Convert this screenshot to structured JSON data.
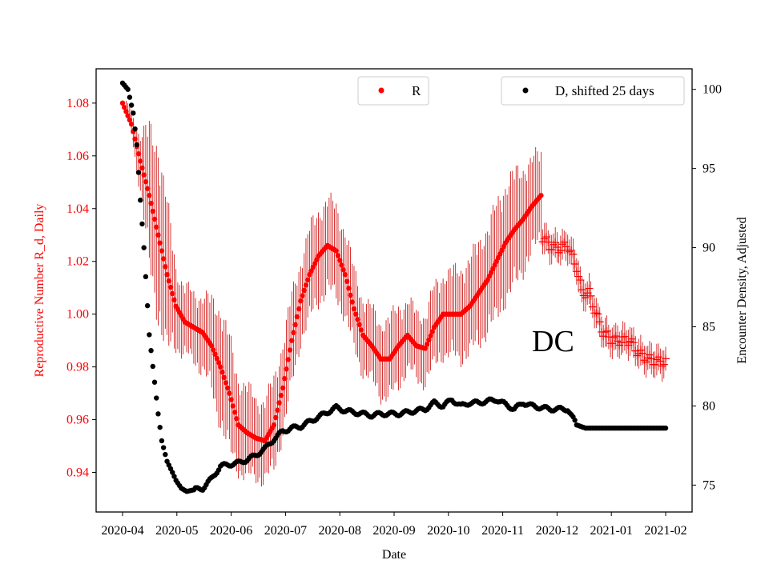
{
  "chart_data": {
    "type": "scatter",
    "title": "",
    "xlabel": "Date",
    "ylabel_left": "Reproductive Number R_d, Daily",
    "ylabel_right": "Encounter Density, Adjusted",
    "annotation": "DC",
    "x_ticks": [
      "2020-04",
      "2020-05",
      "2020-06",
      "2020-07",
      "2020-08",
      "2020-09",
      "2020-10",
      "2020-11",
      "2020-12",
      "2021-01",
      "2021-02"
    ],
    "y_left": {
      "lim": [
        0.925,
        1.093
      ],
      "ticks": [
        "0.94",
        "0.96",
        "0.98",
        "1.00",
        "1.02",
        "1.04",
        "1.06",
        "1.08"
      ]
    },
    "y_right": {
      "lim": [
        73.3,
        101.3
      ],
      "ticks": [
        "75",
        "80",
        "85",
        "90",
        "95",
        "100"
      ]
    },
    "colors": {
      "R": "#ff0000",
      "D": "#000000",
      "axis_left": "#ff0000",
      "axis_right": "#000000"
    },
    "legend": [
      {
        "label": "R",
        "color": "#ff0000",
        "placement": "top-center"
      },
      {
        "label": "D, shifted 25 days",
        "color": "#000000",
        "placement": "top-right"
      }
    ],
    "series_R": {
      "name": "R",
      "axis": "left",
      "marker": "dot",
      "keypoints": [
        [
          0,
          1.08,
          0.0
        ],
        [
          5,
          1.072,
          0.004
        ],
        [
          10,
          1.058,
          0.01
        ],
        [
          15,
          1.045,
          0.024
        ],
        [
          20,
          1.03,
          0.03
        ],
        [
          25,
          1.015,
          0.026
        ],
        [
          30,
          1.003,
          0.014
        ],
        [
          35,
          0.997,
          0.012
        ],
        [
          40,
          0.995,
          0.012
        ],
        [
          45,
          0.993,
          0.013
        ],
        [
          50,
          0.988,
          0.016
        ],
        [
          55,
          0.98,
          0.02
        ],
        [
          60,
          0.97,
          0.02
        ],
        [
          65,
          0.958,
          0.016
        ],
        [
          70,
          0.955,
          0.016
        ],
        [
          75,
          0.953,
          0.014
        ],
        [
          80,
          0.952,
          0.014
        ],
        [
          85,
          0.958,
          0.016
        ],
        [
          90,
          0.972,
          0.016
        ],
        [
          95,
          0.99,
          0.016
        ],
        [
          100,
          1.005,
          0.014
        ],
        [
          105,
          1.015,
          0.016
        ],
        [
          110,
          1.022,
          0.016
        ],
        [
          115,
          1.026,
          0.016
        ],
        [
          120,
          1.024,
          0.016
        ],
        [
          125,
          1.015,
          0.015
        ],
        [
          130,
          1.002,
          0.014
        ],
        [
          135,
          0.992,
          0.013
        ],
        [
          140,
          0.988,
          0.013
        ],
        [
          145,
          0.983,
          0.013
        ],
        [
          150,
          0.983,
          0.014
        ],
        [
          155,
          0.988,
          0.014
        ],
        [
          160,
          0.992,
          0.012
        ],
        [
          165,
          0.988,
          0.012
        ],
        [
          170,
          0.987,
          0.012
        ],
        [
          175,
          0.995,
          0.014
        ],
        [
          180,
          1.0,
          0.014
        ],
        [
          185,
          1.0,
          0.015
        ],
        [
          190,
          1.0,
          0.016
        ],
        [
          195,
          1.003,
          0.016
        ],
        [
          200,
          1.008,
          0.018
        ],
        [
          205,
          1.013,
          0.018
        ],
        [
          210,
          1.02,
          0.02
        ],
        [
          215,
          1.027,
          0.02
        ],
        [
          220,
          1.032,
          0.02
        ],
        [
          225,
          1.036,
          0.018
        ],
        [
          230,
          1.041,
          0.016
        ],
        [
          235,
          1.045,
          0.016
        ]
      ]
    },
    "series_R_plus": {
      "name": "R (plus markers)",
      "axis": "left",
      "marker": "plus",
      "keypoints": [
        [
          236,
          1.029
        ],
        [
          240,
          1.026
        ],
        [
          245,
          1.025
        ],
        [
          250,
          1.026
        ],
        [
          255,
          1.018
        ],
        [
          258,
          1.008
        ],
        [
          262,
          1.008
        ],
        [
          266,
          1.0
        ],
        [
          270,
          0.993
        ],
        [
          275,
          0.99
        ],
        [
          280,
          0.99
        ],
        [
          285,
          0.99
        ],
        [
          290,
          0.985
        ],
        [
          295,
          0.983
        ],
        [
          300,
          0.982
        ],
        [
          305,
          0.982
        ]
      ]
    },
    "series_D": {
      "name": "D, shifted 25 days",
      "axis": "right",
      "marker": "dot",
      "keypoints": [
        [
          0,
          100.4
        ],
        [
          3,
          100.0
        ],
        [
          6,
          98.5
        ],
        [
          8,
          96.5
        ],
        [
          10,
          93.0
        ],
        [
          12,
          90.0
        ],
        [
          15,
          84.5
        ],
        [
          18,
          81.5
        ],
        [
          20,
          79.5
        ],
        [
          22,
          77.8
        ],
        [
          25,
          76.5
        ],
        [
          28,
          75.8
        ],
        [
          30,
          75.3
        ],
        [
          33,
          74.8
        ],
        [
          36,
          74.6
        ],
        [
          40,
          74.7
        ],
        [
          45,
          74.8
        ],
        [
          50,
          75.4
        ],
        [
          55,
          76.2
        ],
        [
          60,
          76.3
        ],
        [
          65,
          76.4
        ],
        [
          70,
          76.6
        ],
        [
          75,
          76.9
        ],
        [
          80,
          77.3
        ],
        [
          85,
          77.9
        ],
        [
          90,
          78.4
        ],
        [
          95,
          78.6
        ],
        [
          100,
          78.7
        ],
        [
          105,
          79.0
        ],
        [
          110,
          79.3
        ],
        [
          115,
          79.6
        ],
        [
          120,
          79.9
        ],
        [
          125,
          79.7
        ],
        [
          130,
          79.6
        ],
        [
          135,
          79.5
        ],
        [
          140,
          79.4
        ],
        [
          145,
          79.5
        ],
        [
          150,
          79.5
        ],
        [
          155,
          79.5
        ],
        [
          160,
          79.6
        ],
        [
          165,
          79.7
        ],
        [
          170,
          79.8
        ],
        [
          175,
          80.2
        ],
        [
          180,
          80.0
        ],
        [
          185,
          80.4
        ],
        [
          190,
          80.0
        ],
        [
          195,
          80.2
        ],
        [
          200,
          80.2
        ],
        [
          205,
          80.3
        ],
        [
          210,
          80.4
        ],
        [
          215,
          80.1
        ],
        [
          220,
          79.8
        ],
        [
          225,
          80.2
        ],
        [
          230,
          80.0
        ],
        [
          235,
          79.9
        ],
        [
          240,
          79.8
        ],
        [
          245,
          79.8
        ],
        [
          250,
          79.8
        ],
        [
          255,
          78.8
        ],
        [
          260,
          78.6
        ],
        [
          270,
          78.6
        ],
        [
          280,
          78.6
        ],
        [
          290,
          78.6
        ],
        [
          300,
          78.6
        ],
        [
          305,
          78.6
        ]
      ]
    }
  }
}
